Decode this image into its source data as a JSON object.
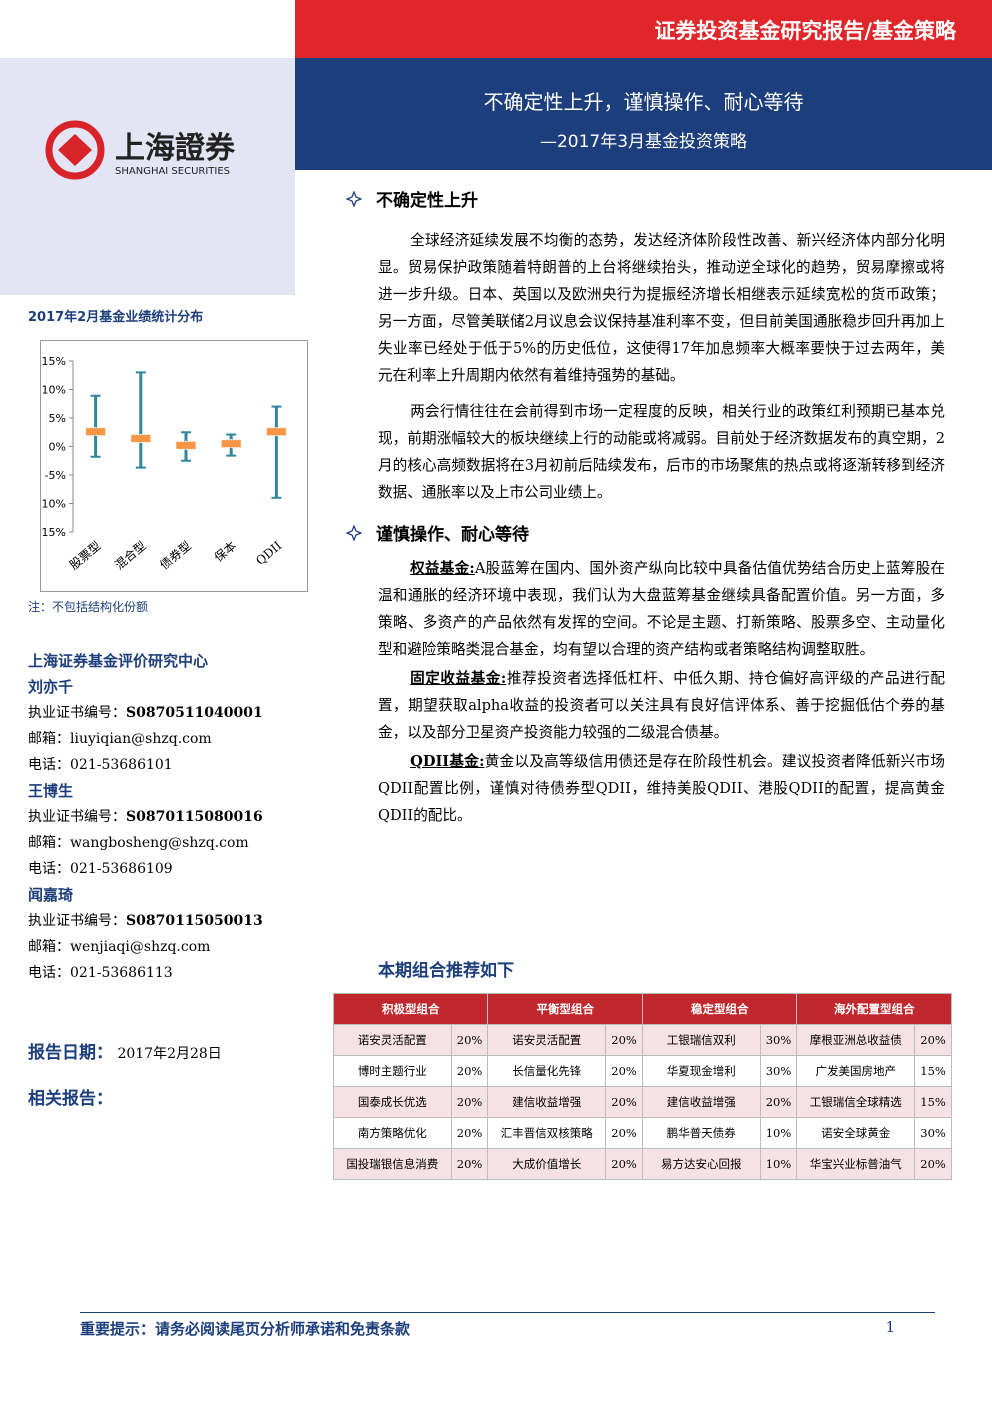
{
  "header": {
    "banner": "证券投资基金研究报告/基金策略",
    "title": "不确定性上升，谨慎操作、耐心等待",
    "subtitle": "—2017年3月基金投资策略",
    "logo_cn": "上海證券",
    "logo_en": "SHANGHAI SECURITIES"
  },
  "sidebar": {
    "chart_title": "2017年2月基金业绩统计分布",
    "note": "注：不包括结构化份额",
    "center": "上海证券基金评价研究中心",
    "analysts": [
      {
        "name": "刘亦千",
        "cert": {
          "label": "执业证书编号：",
          "value": "S0870511040001"
        },
        "email": "邮箱：liuyiqian@shzq.com",
        "phone": "电话：021-53686101"
      },
      {
        "name": "王博生",
        "cert": {
          "label": "执业证书编号：",
          "value": "S0870115080016"
        },
        "email": "邮箱：wangbosheng@shzq.com",
        "phone": "电话：021-53686109"
      },
      {
        "name": "闻嘉琦",
        "cert": {
          "label": "执业证书编号：",
          "value": "S0870115050013"
        },
        "email": "邮箱：wenjiaqi@shzq.com",
        "phone": "电话：021-53686113"
      }
    ],
    "date_label": "报告日期：",
    "date": "2017年2月28日",
    "related": "相关报告："
  },
  "chart_data": {
    "type": "range",
    "categories": [
      "股票型",
      "混合型",
      "债券型",
      "保本",
      "QDII"
    ],
    "high": [
      8.9,
      13,
      2.5,
      2.1,
      7
    ],
    "low": [
      -1.8,
      -3.7,
      -2.5,
      -1.6,
      -9
    ],
    "median": [
      2.6,
      1.4,
      0.2,
      0.5,
      2.6
    ],
    "whisker_color": "#31859c",
    "median_color": "#f79646",
    "ylim": [
      -15,
      15
    ],
    "yticks": [
      {
        "value": 15,
        "label": "15%"
      },
      {
        "value": 10,
        "label": "10%"
      },
      {
        "value": 5,
        "label": "5%"
      },
      {
        "value": 0,
        "label": "0%"
      },
      {
        "value": -5,
        "label": "-5%"
      },
      {
        "value": -10,
        "label": "-10%"
      },
      {
        "value": -15,
        "label": "-15%"
      }
    ]
  },
  "sections": [
    {
      "heading": "不确定性上升",
      "paragraphs": [
        {
          "text": "全球经济延续发展不均衡的态势，发达经济体阶段性改善、新兴经济体内部分化明显。贸易保护政策随着特朗普的上台将继续抬头，推动逆全球化的趋势，贸易摩擦或将进一步升级。日本、英国以及欧洲央行为提振经济增长相继表示延续宽松的货币政策；另一方面，尽管美联储2月议息会议保持基准利率不变，但目前美国通胀稳步回升再加上失业率已经处于低于5%的历史低位，这使得17年加息频率大概率要快于过去两年，美元在利率上升周期内依然有着维持强势的基础。"
        },
        {
          "text": "两会行情往往在会前得到市场一定程度的反映，相关行业的政策红利预期已基本兑现，前期涨幅较大的板块继续上行的动能或将减弱。目前处于经济数据发布的真空期，2月的核心高频数据将在3月初前后陆续发布，后市的市场聚焦的热点或将逐渐转移到经济数据、通胀率以及上市公司业绩上。"
        }
      ]
    },
    {
      "heading": "谨慎操作、耐心等待",
      "paragraphs": [
        {
          "label": "权益基金:",
          "text": "A股蓝筹在国内、国外资产纵向比较中具备估值优势结合历史上蓝筹股在温和通胀的经济环境中表现，我们认为大盘蓝筹基金继续具备配置价值。另一方面，多策略、多资产的产品依然有发挥的空间。不论是主题、打新策略、股票多空、主动量化型和避险策略类混合基金，均有望以合理的资产结构或者策略结构调整取胜。"
        },
        {
          "label": "固定收益基金:",
          "text": "推荐投资者选择低杠杆、中低久期、持仓偏好高评级的产品进行配置，期望获取alpha收益的投资者可以关注具有良好信评体系、善于挖掘低估个券的基金，以及部分卫星资产投资能力较强的二级混合债基。"
        },
        {
          "label": "QDII基金:",
          "text": "黄金以及高等级信用债还是存在阶段性机会。建议投资者降低新兴市场QDII配置比例，谨慎对待债券型QDII，维持美股QDII、港股QDII的配置，提高黄金QDII的配比。"
        }
      ]
    }
  ],
  "portfolio": {
    "heading": "本期组合推荐如下",
    "groups": [
      {
        "name": "积极型组合",
        "funds": [
          [
            "诺安灵活配置",
            "20%"
          ],
          [
            "博时主题行业",
            "20%"
          ],
          [
            "国泰成长优选",
            "20%"
          ],
          [
            "南方策略优化",
            "20%"
          ],
          [
            "国投瑞银信息消费",
            "20%"
          ]
        ]
      },
      {
        "name": "平衡型组合",
        "funds": [
          [
            "诺安灵活配置",
            "20%"
          ],
          [
            "长信量化先锋",
            "20%"
          ],
          [
            "建信收益增强",
            "20%"
          ],
          [
            "汇丰晋信双核策略",
            "20%"
          ],
          [
            "大成价值增长",
            "20%"
          ]
        ]
      },
      {
        "name": "稳定型组合",
        "funds": [
          [
            "工银瑞信双利",
            "30%"
          ],
          [
            "华夏现金增利",
            "30%"
          ],
          [
            "建信收益增强",
            "20%"
          ],
          [
            "鹏华普天债券",
            "10%"
          ],
          [
            "易方达安心回报",
            "10%"
          ]
        ]
      },
      {
        "name": "海外配置型组合",
        "funds": [
          [
            "摩根亚洲总收益债",
            "20%"
          ],
          [
            "广发美国房地产",
            "15%"
          ],
          [
            "工银瑞信全球精选",
            "15%"
          ],
          [
            "诺安全球黄金",
            "30%"
          ],
          [
            "华宝兴业标普油气",
            "20%"
          ]
        ]
      }
    ]
  },
  "footer": {
    "notice": "重要提示：请务必阅读尾页分析师承诺和免责条款",
    "page": "1"
  }
}
